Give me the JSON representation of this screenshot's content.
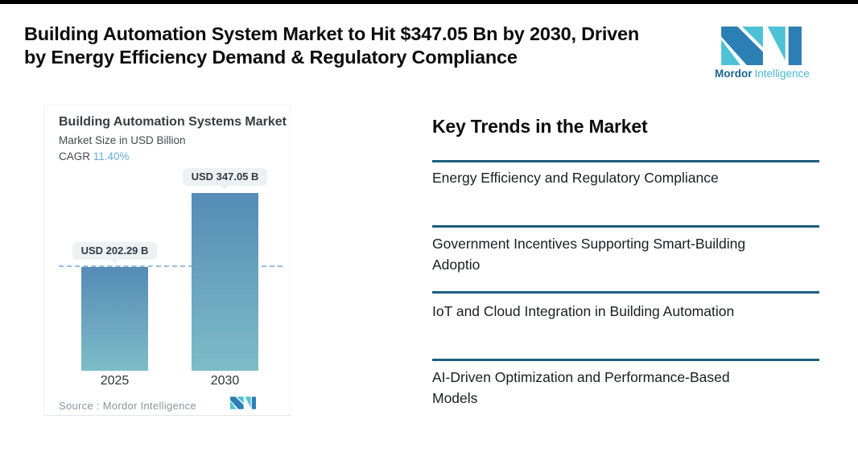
{
  "header": {
    "title_lines": [
      "Building Automation System Market to Hit $347.05 Bn by 2030, Driven",
      "by Energy Efficiency Demand & Regulatory Compliance"
    ]
  },
  "brand": {
    "name_bold": "Mordor",
    "name_light": "Intelligence",
    "color_dark": "#2b7fb5",
    "color_light": "#4dc2d6"
  },
  "chart": {
    "title": "Building Automation Systems Market",
    "subtitle": "Market Size in USD Billion",
    "cagr_label": "CAGR",
    "cagr_value": "11.40%",
    "source": "Source :  Mordor Intelligence"
  },
  "chart_data": {
    "type": "bar",
    "title": "Building Automation Systems Market",
    "ylabel": "Market Size in USD Billion",
    "categories": [
      "2025",
      "2030"
    ],
    "values": [
      202.29,
      347.05
    ],
    "value_labels": [
      "USD 202.29 B",
      "USD 347.05 B"
    ],
    "unit": "USD Billion",
    "cagr_percent": 11.4,
    "ylim": [
      0,
      347.05
    ],
    "reference_line_value": 202.29,
    "reference_line_style": "dashed",
    "bar_color_top": "#558bb6",
    "bar_color_bottom": "#7ebcc8",
    "grid": false,
    "legend": false
  },
  "key_trends": {
    "heading": "Key Trends in the Market",
    "items": [
      [
        "Energy Efficiency and Regulatory Compliance"
      ],
      [
        "Government Incentives Supporting Smart-Building",
        "Adoptio"
      ],
      [
        "IoT and Cloud Integration in Building Automation"
      ],
      [
        "AI-Driven Optimization and Performance-Based",
        "Models"
      ]
    ]
  }
}
